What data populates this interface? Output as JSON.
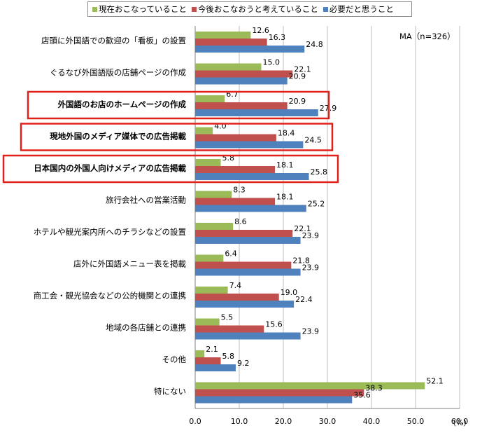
{
  "chart_data": {
    "type": "bar",
    "orientation": "horizontal",
    "categories": [
      "店頭に外国語での歓迎の「看板」の設置",
      "ぐるなび外国語版の店舗ページの作成",
      "外国語のお店のホームページの作成",
      "現地外国のメディア媒体での広告掲載",
      "日本国内の外国人向けメディアの広告掲載",
      "旅行会社への営業活動",
      "ホテルや観光案内所へのチラシなどの設置",
      "店外に外国語メニュー表を掲載",
      "商工会・観光協会などの公的機関との連携",
      "地域の各店舗との連携",
      "その他",
      "特にない"
    ],
    "highlighted_categories": [
      2,
      3,
      4
    ],
    "series": [
      {
        "name": "現在おこなっていること",
        "color": "#9bbb59",
        "values": [
          12.6,
          15.0,
          6.7,
          4.0,
          5.8,
          8.3,
          8.6,
          6.4,
          7.4,
          5.5,
          2.1,
          52.1
        ]
      },
      {
        "name": "今後おこなおうと考えていること",
        "color": "#c0504d",
        "values": [
          16.3,
          22.1,
          20.9,
          18.4,
          18.1,
          18.1,
          22.1,
          21.8,
          19.0,
          15.6,
          5.8,
          38.3
        ]
      },
      {
        "name": "必要だと思うこと",
        "color": "#4f81bd",
        "values": [
          24.8,
          20.9,
          27.9,
          24.5,
          25.8,
          25.2,
          23.9,
          23.9,
          22.4,
          23.9,
          9.2,
          35.6
        ]
      }
    ],
    "xlim": [
      0,
      60
    ],
    "xticks": [
      "0.0",
      "10.0",
      "20.0",
      "30.0",
      "40.0",
      "50.0",
      "60.0"
    ],
    "grid": true,
    "legend_position": "top",
    "highlight_color": "#e0201b"
  },
  "note": "MA（n=326）",
  "unit": "（%）"
}
